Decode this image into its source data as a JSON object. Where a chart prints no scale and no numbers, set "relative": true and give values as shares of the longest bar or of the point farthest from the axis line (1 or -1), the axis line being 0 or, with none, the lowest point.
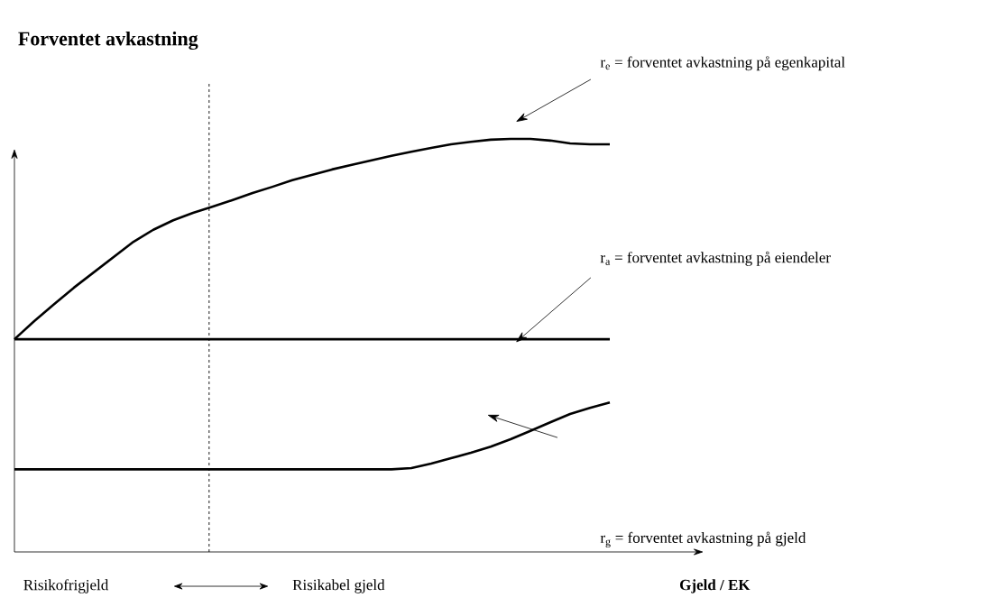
{
  "chart_data": {
    "type": "line",
    "relative": true,
    "title": "Forventet avkastning",
    "marker": "none",
    "line_style": "solid",
    "categories": [
      null,
      null,
      null,
      null,
      null,
      null,
      null,
      null,
      null,
      null,
      null,
      null,
      null,
      null,
      null,
      null,
      null,
      null,
      null,
      null,
      null,
      null,
      null,
      null,
      null,
      null,
      null,
      null,
      null,
      null,
      null
    ],
    "series": [
      {
        "color": "#000000",
        "values": [
          0.515,
          0.559,
          0.6,
          0.64,
          0.677,
          0.714,
          0.751,
          0.78,
          0.803,
          0.821,
          0.836,
          0.852,
          0.869,
          0.884,
          0.9,
          0.913,
          0.926,
          0.937,
          0.948,
          0.959,
          0.969,
          0.978,
          0.987,
          0.993,
          0.998,
          1.0,
          1.0,
          0.996,
          0.989,
          0.987,
          0.987
        ]
      },
      {
        "color": "#000000",
        "values": [
          0.515,
          0.515,
          0.515,
          0.515,
          0.515,
          0.515,
          0.515,
          0.515,
          0.515,
          0.515,
          0.515,
          0.515,
          0.515,
          0.515,
          0.515,
          0.515,
          0.515,
          0.515,
          0.515,
          0.515,
          0.515,
          0.515,
          0.515,
          0.515,
          0.515,
          0.515,
          0.515,
          0.515,
          0.515,
          0.515,
          0.515
        ]
      },
      {
        "color": "#000000",
        "values": [
          0.2,
          0.2,
          0.2,
          0.2,
          0.2,
          0.2,
          0.2,
          0.2,
          0.2,
          0.2,
          0.2,
          0.2,
          0.2,
          0.2,
          0.2,
          0.2,
          0.2,
          0.2,
          0.2,
          0.2,
          0.203,
          0.214,
          0.227,
          0.24,
          0.255,
          0.273,
          0.293,
          0.314,
          0.334,
          0.349,
          0.362
        ]
      }
    ],
    "annotations": [
      "r$_{e}$ = forventet avkastning på egenkapital",
      "r$_{a}$ = forventet avkastning på eiendeler",
      "r$_{g}$ = forventet avkastning på gjeld",
      "Risikofrigjeld",
      "Risikabel gjeld",
      "Gjeld / EK"
    ]
  }
}
